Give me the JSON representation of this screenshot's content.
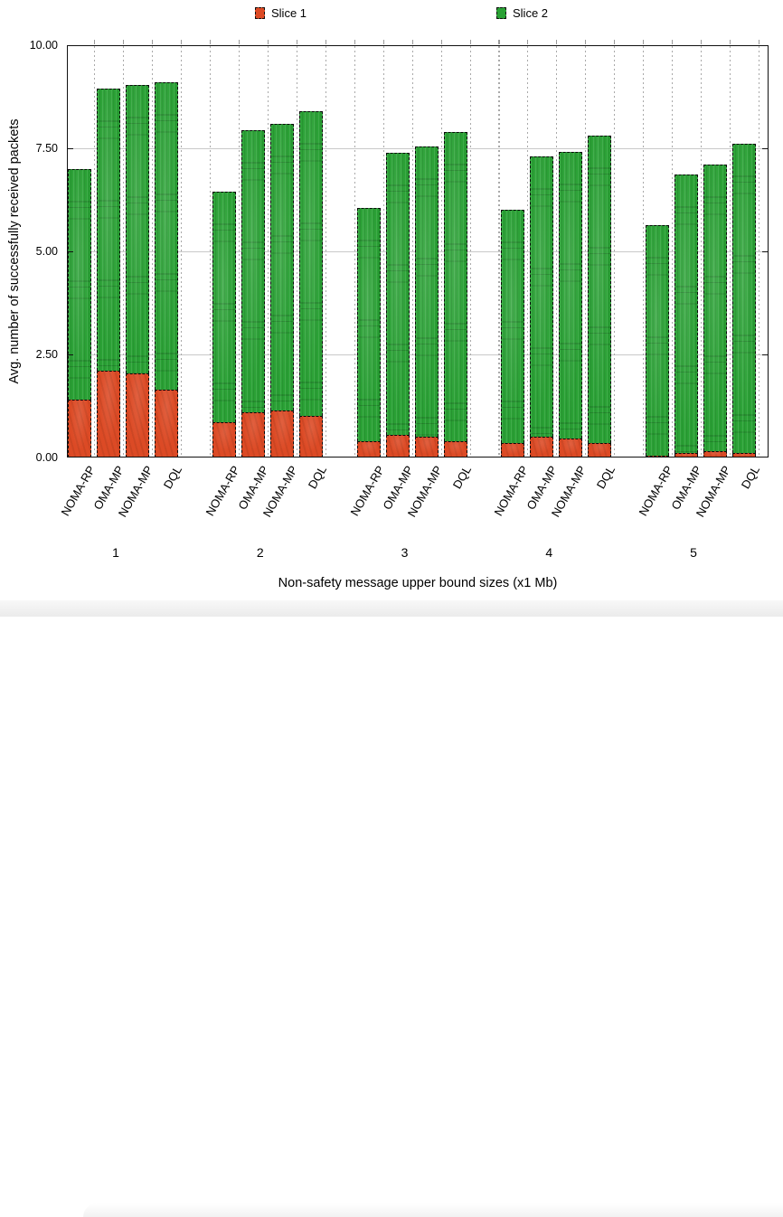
{
  "chart_data": {
    "type": "bar",
    "subtype": "stacked",
    "title": "",
    "xlabel": "Non-safety message upper bound sizes (x1 Mb)",
    "ylabel": "Avg. number of successfully received packets",
    "ylim": [
      0,
      10
    ],
    "ytick_labels": [
      "0.00",
      "2.50",
      "5.00",
      "7.50",
      "10.00"
    ],
    "grid": "on",
    "legend_position": "top",
    "groups": [
      "1",
      "2",
      "3",
      "4",
      "5"
    ],
    "bar_labels": [
      "NOMA-RP",
      "OMA-MP",
      "NOMA-MP",
      "DQL"
    ],
    "legend": [
      {
        "label": "Slice 1",
        "color": "#dc4a25"
      },
      {
        "label": "Slice 2",
        "color": "#2aa135"
      }
    ],
    "series": [
      {
        "name": "Slice 1",
        "values": [
          [
            1.4,
            2.1,
            2.05,
            1.65
          ],
          [
            0.85,
            1.1,
            1.15,
            1.0
          ],
          [
            0.4,
            0.55,
            0.5,
            0.4
          ],
          [
            0.35,
            0.5,
            0.45,
            0.35
          ],
          [
            0.05,
            0.1,
            0.15,
            0.1
          ]
        ]
      },
      {
        "name": "Slice 2",
        "values": [
          [
            5.6,
            6.85,
            7.0,
            7.45
          ],
          [
            5.6,
            6.85,
            6.95,
            7.4
          ],
          [
            5.65,
            6.85,
            7.05,
            7.5
          ],
          [
            5.65,
            6.8,
            6.95,
            7.45
          ],
          [
            5.6,
            6.75,
            6.95,
            7.5
          ]
        ]
      }
    ],
    "totals": [
      [
        7.0,
        8.95,
        9.05,
        9.1
      ],
      [
        6.45,
        7.95,
        8.1,
        8.4
      ],
      [
        6.05,
        7.4,
        7.55,
        7.9
      ],
      [
        6.0,
        7.3,
        7.4,
        7.8
      ],
      [
        5.65,
        6.85,
        7.1,
        7.6
      ]
    ]
  }
}
